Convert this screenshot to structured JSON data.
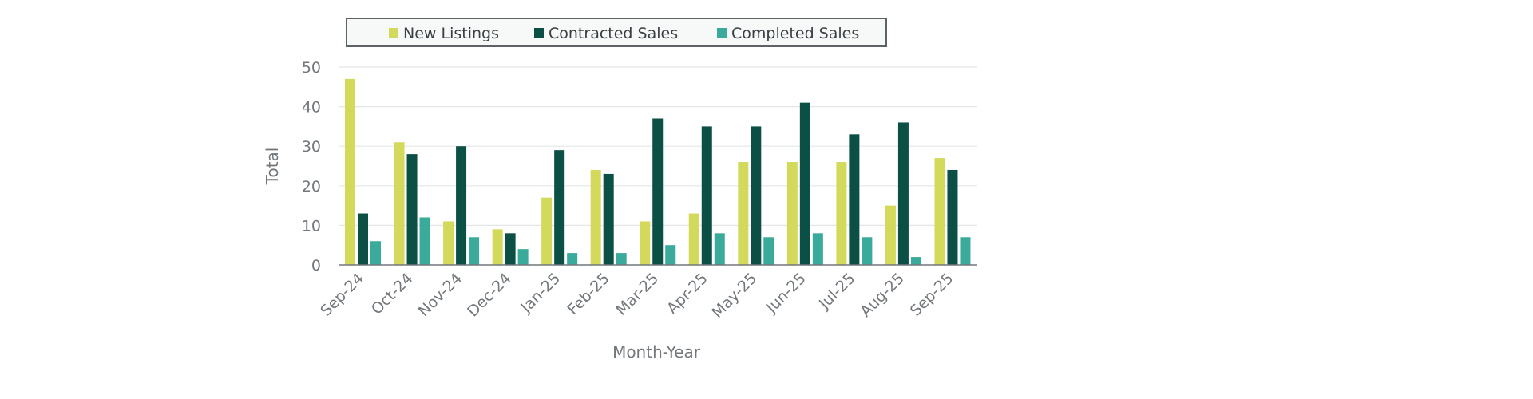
{
  "chart_data": {
    "type": "bar",
    "title": "",
    "xlabel": "Month-Year",
    "ylabel": "Total",
    "ylim": [
      0,
      50
    ],
    "yticks": [
      0,
      10,
      20,
      30,
      40,
      50
    ],
    "grid": true,
    "legend_position": "top-center",
    "categories": [
      "Sep-24",
      "Oct-24",
      "Nov-24",
      "Dec-24",
      "Jan-25",
      "Feb-25",
      "Mar-25",
      "Apr-25",
      "May-25",
      "Jun-25",
      "Jul-25",
      "Aug-25",
      "Sep-25"
    ],
    "series": [
      {
        "name": "New Listings",
        "color": "#d3d95b",
        "values": [
          47,
          31,
          11,
          9,
          17,
          24,
          11,
          13,
          26,
          26,
          26,
          15,
          27
        ]
      },
      {
        "name": "Contracted Sales",
        "color": "#0b4f45",
        "values": [
          13,
          28,
          30,
          8,
          29,
          23,
          37,
          35,
          35,
          41,
          33,
          36,
          24
        ]
      },
      {
        "name": "Completed Sales",
        "color": "#3aaa9a",
        "values": [
          6,
          12,
          7,
          4,
          3,
          3,
          5,
          8,
          7,
          8,
          7,
          2,
          7
        ]
      }
    ]
  }
}
